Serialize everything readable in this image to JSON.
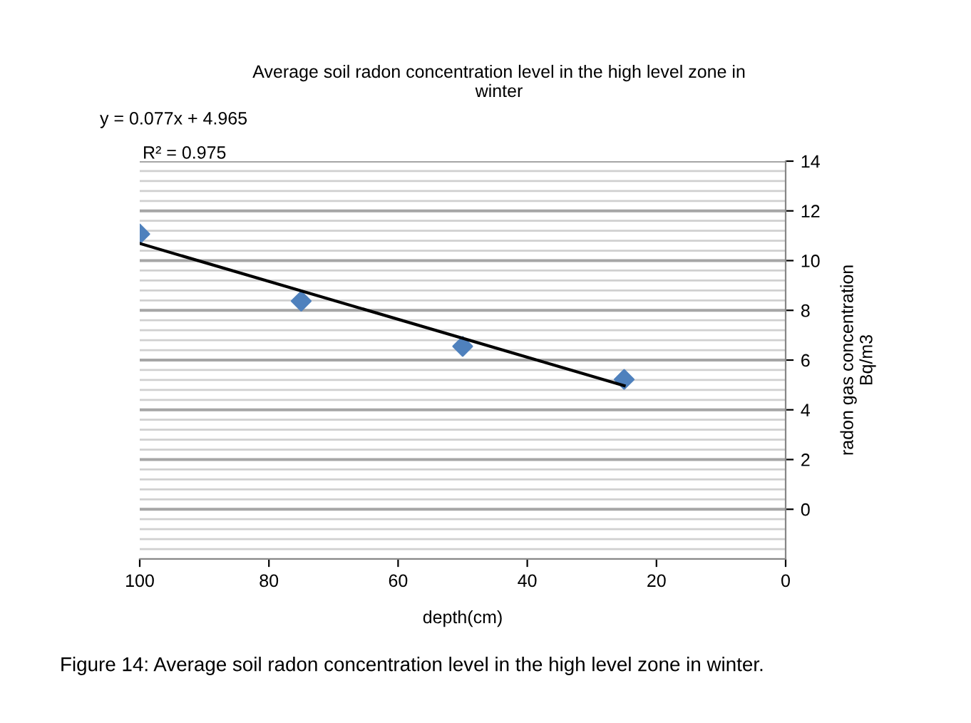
{
  "chart_data": {
    "type": "scatter",
    "title": "Average soil radon concentration level in the high level zone in\nwinter",
    "xlabel": "depth(cm)",
    "ylabel": "radon gas concentration\nBq/m3",
    "x": [
      100,
      75,
      50,
      25
    ],
    "series": [
      {
        "color": "#4f81bd",
        "values": [
          11.07,
          8.37,
          6.55,
          5.22
        ],
        "marker": "diamond"
      },
      {
        "type": "line",
        "x": [
          100,
          25
        ],
        "values": [
          10.69,
          4.97
        ],
        "color": "#000000",
        "marker": "none",
        "line_style": "solid"
      }
    ],
    "xlim": [
      100,
      0
    ],
    "xticks": [
      100,
      80,
      60,
      40,
      20,
      0
    ],
    "ylim": [
      -2,
      14
    ],
    "yticks": [
      0,
      2,
      4,
      6,
      8,
      10,
      12,
      14
    ],
    "grid": "y",
    "annotations": [
      "y = 0.077x + 4.965",
      "R² = 0.975",
      "Figure 14: Average soil radon concentration level in the high level zone in winter."
    ]
  }
}
